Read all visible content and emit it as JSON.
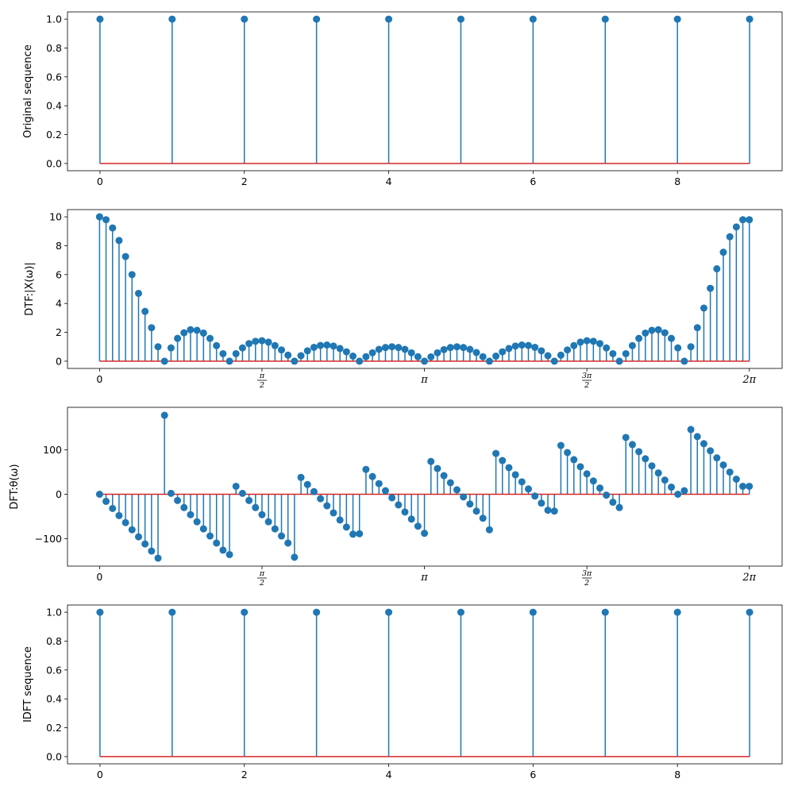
{
  "chart_data": [
    {
      "type": "stem",
      "title": "",
      "xlabel": "",
      "ylabel": "Original sequence",
      "x": [
        0,
        1,
        2,
        3,
        4,
        5,
        6,
        7,
        8,
        9
      ],
      "values": [
        1,
        1,
        1,
        1,
        1,
        1,
        1,
        1,
        1,
        1
      ],
      "xlim": [
        -0.45,
        9.45
      ],
      "ylim": [
        -0.05,
        1.05
      ],
      "xticks": [
        0,
        2,
        4,
        6,
        8
      ],
      "xtick_labels": [
        "0",
        "2",
        "4",
        "6",
        "8"
      ],
      "yticks": [
        0.0,
        0.2,
        0.4,
        0.6,
        0.8,
        1.0
      ],
      "ytick_labels": [
        "0.0",
        "0.2",
        "0.4",
        "0.6",
        "0.8",
        "1.0"
      ],
      "baseline": 0,
      "grid": false,
      "legend": "none"
    },
    {
      "type": "stem",
      "title": "",
      "xlabel": "",
      "ylabel": "DTF:|X(ω)|",
      "x_range": [
        0,
        6.2832
      ],
      "n_points": 101,
      "values": [
        10.0,
        9.8,
        9.23,
        8.36,
        7.25,
        6.0,
        4.7,
        3.45,
        2.32,
        1.0,
        0.0,
        0.92,
        1.58,
        1.97,
        2.18,
        2.14,
        1.95,
        1.58,
        1.08,
        0.52,
        0.0,
        0.52,
        0.92,
        1.22,
        1.38,
        1.42,
        1.32,
        1.08,
        0.78,
        0.42,
        0.0,
        0.38,
        0.72,
        0.96,
        1.09,
        1.12,
        1.05,
        0.88,
        0.65,
        0.35,
        0.0,
        0.31,
        0.58,
        0.82,
        0.95,
        1.0,
        0.95,
        0.82,
        0.58,
        0.31,
        0.0,
        0.3,
        0.58,
        0.8,
        0.95,
        1.0,
        0.95,
        0.82,
        0.6,
        0.31,
        0.0,
        0.35,
        0.65,
        0.88,
        1.05,
        1.12,
        1.09,
        0.96,
        0.72,
        0.38,
        0.0,
        0.42,
        0.78,
        1.08,
        1.32,
        1.42,
        1.38,
        1.22,
        0.92,
        0.52,
        0.0,
        0.52,
        1.08,
        1.58,
        1.95,
        2.14,
        2.18,
        1.97,
        1.58,
        0.92,
        0.0,
        1.0,
        2.32,
        3.68,
        5.05,
        6.4,
        7.55,
        8.62,
        9.3,
        9.8,
        9.8
      ],
      "xlim": [
        -0.31,
        6.6
      ],
      "ylim": [
        -0.5,
        10.5
      ],
      "xticks": [
        0,
        1.5708,
        3.1416,
        4.7124,
        6.2832
      ],
      "xtick_labels": [
        "0",
        "π/2",
        "π",
        "3π/2",
        "2π"
      ],
      "yticks": [
        0,
        2,
        4,
        6,
        8,
        10
      ],
      "ytick_labels": [
        "0",
        "2",
        "4",
        "6",
        "8",
        "10"
      ],
      "baseline": 0,
      "grid": false,
      "legend": "none"
    },
    {
      "type": "stem",
      "title": "",
      "xlabel": "",
      "ylabel": "DFT:θ(ω)",
      "x_range": [
        0,
        6.2832
      ],
      "n_points": 101,
      "values": [
        0,
        -16,
        -32,
        -48,
        -64,
        -80,
        -96,
        -112,
        -128,
        -144,
        178,
        2,
        -14,
        -30,
        -46,
        -62,
        -78,
        -94,
        -110,
        -126,
        -136,
        18,
        2,
        -14,
        -30,
        -46,
        -62,
        -78,
        -94,
        -110,
        -142,
        38,
        22,
        6,
        -10,
        -26,
        -42,
        -58,
        -74,
        -90,
        -89,
        56,
        40,
        24,
        8,
        -8,
        -24,
        -40,
        -56,
        -72,
        -88,
        74,
        58,
        42,
        26,
        10,
        -6,
        -22,
        -38,
        -54,
        -80,
        92,
        76,
        60,
        44,
        28,
        12,
        -4,
        -20,
        -36,
        -38,
        110,
        94,
        78,
        62,
        46,
        30,
        14,
        -2,
        -18,
        -30,
        128,
        112,
        96,
        80,
        64,
        48,
        32,
        16,
        0,
        8,
        146,
        130,
        114,
        98,
        82,
        66,
        50,
        34,
        18,
        18
      ],
      "xlim": [
        -0.31,
        6.6
      ],
      "ylim": [
        -162,
        196
      ],
      "xticks": [
        0,
        1.5708,
        3.1416,
        4.7124,
        6.2832
      ],
      "xtick_labels": [
        "0",
        "π/2",
        "π",
        "3π/2",
        "2π"
      ],
      "yticks": [
        -100,
        0,
        100
      ],
      "ytick_labels": [
        "−100",
        "0",
        "100"
      ],
      "baseline": 0,
      "grid": false,
      "legend": "none"
    },
    {
      "type": "stem",
      "title": "",
      "xlabel": "",
      "ylabel": "IDFT sequence",
      "x": [
        0,
        1,
        2,
        3,
        4,
        5,
        6,
        7,
        8,
        9
      ],
      "values": [
        1,
        1,
        1,
        1,
        1,
        1,
        1,
        1,
        1,
        1
      ],
      "xlim": [
        -0.45,
        9.45
      ],
      "ylim": [
        -0.05,
        1.05
      ],
      "xticks": [
        0,
        2,
        4,
        6,
        8
      ],
      "xtick_labels": [
        "0",
        "2",
        "4",
        "6",
        "8"
      ],
      "yticks": [
        0.0,
        0.2,
        0.4,
        0.6,
        0.8,
        1.0
      ],
      "ytick_labels": [
        "0.0",
        "0.2",
        "0.4",
        "0.6",
        "0.8",
        "1.0"
      ],
      "baseline": 0,
      "grid": false,
      "legend": "none"
    }
  ],
  "colors": {
    "stem": "#1f77b4",
    "baseline": "#d62728",
    "axes": "#000000"
  }
}
